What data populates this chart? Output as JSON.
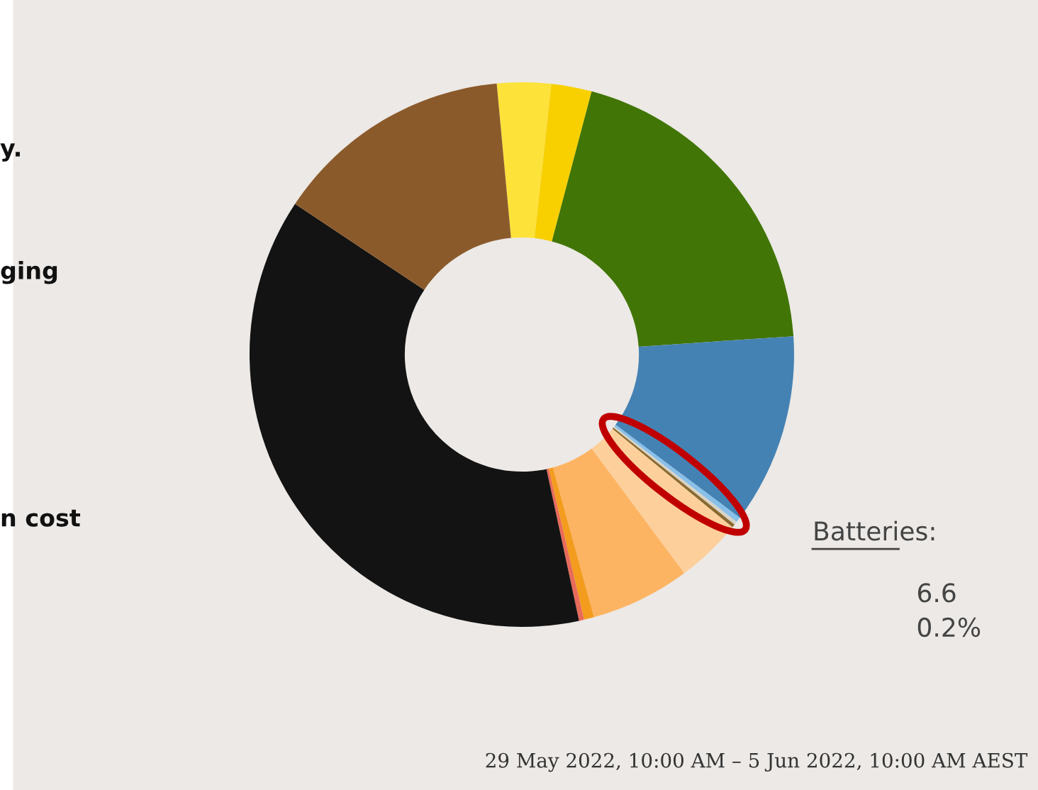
{
  "chart_data": {
    "type": "donut",
    "categories": [
      null,
      null,
      null,
      null,
      null,
      null,
      null,
      null,
      null,
      null,
      null,
      null,
      null
    ],
    "values": [
      3.2,
      2.4,
      19.8,
      11.3,
      0.3,
      0.2,
      0.2,
      3.9,
      5.9,
      0.6,
      0.3,
      37.7,
      14.2
    ],
    "colors": [
      "#fde23a",
      "#f8d000",
      "#417505",
      "#4582b4",
      "#88c0ea",
      "#d9d3c4",
      "#8a6a30",
      "#fdd09b",
      "#fdb462",
      "#f39c1e",
      "#e86a5a",
      "#131313",
      "#8b5a2b"
    ],
    "annotations": [
      "y.",
      "ging",
      "n cost",
      "Batteries:\n6.6\n0.2%",
      "29 May 2022, 10:00 AM – 5 Jun 2022, 10:00 AM AEST"
    ]
  }
}
